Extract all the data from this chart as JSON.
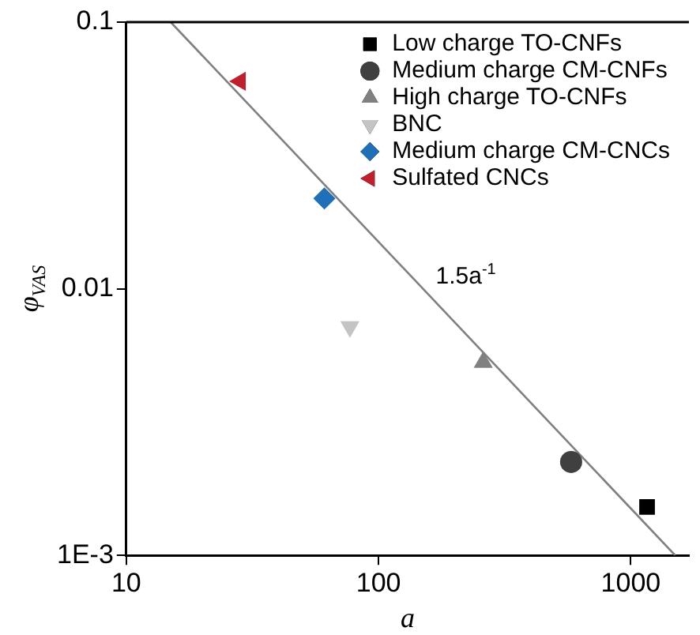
{
  "chart_data": {
    "type": "scatter",
    "xlabel": "a",
    "ylabel": "φ$_{VAS}$",
    "log": "xy",
    "xlim": [
      10,
      1700
    ],
    "ylim": [
      0.001,
      0.1
    ],
    "xticks": [
      10,
      100,
      1000
    ],
    "yticks": [
      {
        "value": 0.001,
        "label": "1E-3"
      },
      0.01,
      0.1
    ],
    "grid": false,
    "legend": "top right",
    "series": [
      {
        "name": "Low charge TO-CNFs",
        "color": "#000000",
        "marker": "square",
        "x": [
          1160
        ],
        "values": [
          0.00152
        ]
      },
      {
        "name": "Medium charge CM-CNFs",
        "color": "#404040",
        "marker": "circle",
        "x": [
          580
        ],
        "values": [
          0.00224
        ]
      },
      {
        "name": "High charge TO-CNFs",
        "color": "#808080",
        "marker": "triangle",
        "x": [
          260
        ],
        "values": [
          0.0053
        ]
      },
      {
        "name": "BNC",
        "color": "#c4c4c4",
        "marker": "triangle-down",
        "x": [
          77
        ],
        "values": [
          0.0072
        ]
      },
      {
        "name": "Medium charge CM-CNCs",
        "color": "#1f70b8",
        "marker": "diamond",
        "x": [
          61
        ],
        "values": [
          0.0218
        ]
      },
      {
        "name": "Sulfated CNCs",
        "color": "#c0202e",
        "marker": "triangle-left",
        "x": [
          28.3
        ],
        "values": [
          0.06
        ]
      },
      {
        "type": "line",
        "color": "#808080",
        "marker": "none",
        "x": [
          15,
          1500
        ],
        "values": [
          0.1,
          0.001
        ]
      }
    ],
    "annotations": [
      "1.5a$^{-1}$"
    ]
  }
}
